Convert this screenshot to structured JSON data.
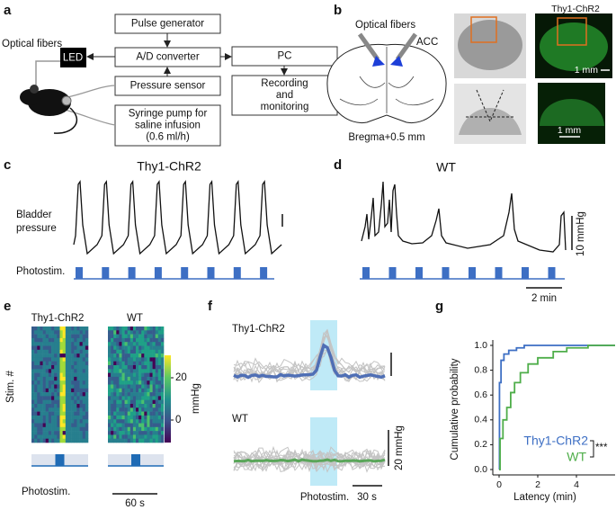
{
  "panels": {
    "a": {
      "label": "a",
      "fibers": "Optical fibers",
      "led": "LED",
      "boxes": [
        [
          "Pulse generator"
        ],
        [
          "A/D converter"
        ],
        [
          "Pressure sensor"
        ],
        [
          "Syringe pump for",
          "saline infusion",
          "(0.6 ml/h)"
        ],
        [
          "PC"
        ],
        [
          "Recording",
          "and",
          "monitoring"
        ]
      ]
    },
    "b": {
      "label": "b",
      "fibers": "Optical fibers",
      "region": "ACC",
      "bregma": "Bregma+0.5 mm",
      "strain": "Thy1-ChR2",
      "scale_top": "1 mm",
      "scale_bottom": "1 mm"
    },
    "c": {
      "label": "c",
      "title": "Thy1-ChR2",
      "ylabel": [
        "Bladder",
        "pressure"
      ],
      "stim": "Photostim."
    },
    "d": {
      "label": "d",
      "title": "WT",
      "scale_y": "10 mmHg",
      "scale_x": "2 min"
    },
    "e": {
      "label": "e",
      "titles": [
        "Thy1-ChR2",
        "WT"
      ],
      "ylabel": "Stim. #",
      "colorbar_label": "mmHg",
      "colorbar_ticks": [
        "20",
        "0"
      ],
      "stim": "Photostim.",
      "scale_x": "60 s"
    },
    "f": {
      "label": "f",
      "titles": [
        "Thy1-ChR2",
        "WT"
      ],
      "scale_y": "20 mmHg",
      "stim": "Photostim.",
      "scale_x": "30 s"
    },
    "g": {
      "label": "g",
      "ylabel": "Cumulative probability",
      "xlabel": "Latency (min)",
      "yticks": [
        {
          "value": 0,
          "label": "0.0"
        },
        {
          "value": 0.2,
          "label": "0.2"
        },
        {
          "value": 0.4,
          "label": "0.4"
        },
        {
          "value": 0.6,
          "label": "0.6"
        },
        {
          "value": 0.8,
          "label": "0.8"
        },
        {
          "value": 1,
          "label": "1.0"
        }
      ],
      "xticks": [
        0,
        2,
        4
      ],
      "legend": [
        {
          "name": "Thy1-ChR2",
          "color": "#3d6fc4"
        },
        {
          "name": "WT",
          "color": "#4fae4a"
        }
      ],
      "significance": "***"
    }
  }
}
